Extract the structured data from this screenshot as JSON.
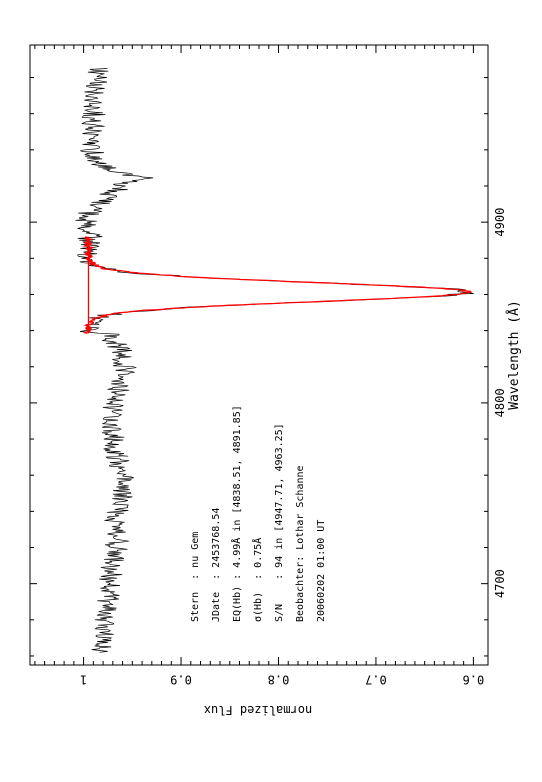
{
  "chart_data": {
    "type": "line",
    "orientation": "rotated-90",
    "xlabel": "Wavelength (Å)",
    "ylabel": "normalized Flux",
    "xlim": [
      4655,
      4998
    ],
    "ylim": [
      0.585,
      1.055
    ],
    "x_ticks": [
      4700,
      4800,
      4900
    ],
    "y_ticks": [
      1,
      0.9,
      0.8,
      0.7,
      0.6
    ],
    "y_tick_labels": [
      "1",
      "0.9",
      "0.8",
      "0.7",
      "0.6"
    ],
    "grid": false,
    "colors": {
      "spectrum": "#000000",
      "fit": "#ff0000"
    },
    "series": [
      {
        "id": "spectrum",
        "x_start": 4662,
        "x_end": 4985,
        "x_step": 0.5,
        "baseline": [
          [
            4662,
            0.98
          ],
          [
            4680,
            0.977
          ],
          [
            4700,
            0.974
          ],
          [
            4715,
            0.968
          ],
          [
            4725,
            0.965
          ],
          [
            4738,
            0.968
          ],
          [
            4750,
            0.958
          ],
          [
            4760,
            0.96
          ],
          [
            4775,
            0.968
          ],
          [
            4790,
            0.972
          ],
          [
            4800,
            0.97
          ],
          [
            4812,
            0.96
          ],
          [
            4822,
            0.958
          ],
          [
            4830,
            0.962
          ],
          [
            4838,
            0.975
          ],
          [
            4846,
            0.985
          ],
          [
            4870,
            0.988
          ],
          [
            4891,
            0.985
          ],
          [
            4895,
            0.995
          ],
          [
            4900,
            0.998
          ],
          [
            4905,
            0.995
          ],
          [
            4912,
            0.982
          ],
          [
            4918,
            0.965
          ],
          [
            4922,
            0.958
          ],
          [
            4924,
            0.936
          ],
          [
            4927,
            0.96
          ],
          [
            4932,
            0.985
          ],
          [
            4940,
            0.992
          ],
          [
            4955,
            0.99
          ],
          [
            4970,
            0.988
          ],
          [
            4985,
            0.985
          ]
        ],
        "noise_amplitude": 0.012
      },
      {
        "id": "fit",
        "profile": "gaussian",
        "baseline_level": 0.995,
        "center": 4861.3,
        "depth": 0.39,
        "sigma": 5.2,
        "x_range": [
          4838.51,
          4891.85
        ]
      }
    ],
    "annotations": [
      "Stern  : nu Gem",
      "JDate  : 2453768.54",
      "EQ(Hb) : 4.99Å in [4838.51, 4891.85]",
      "σ(Hb)  : 0.75Å",
      "S/N    : 94 in [4947.71, 4963.25]",
      "Beobachter: Lothar Schanne",
      "20060202 01:00 UT"
    ]
  }
}
